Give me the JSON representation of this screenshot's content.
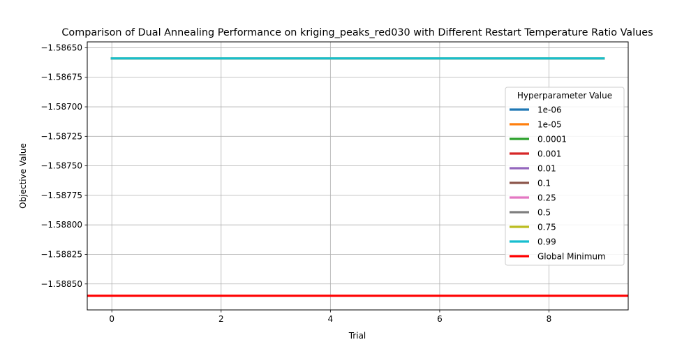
{
  "chart_data": {
    "type": "line",
    "title": "Comparison of Dual Annealing Performance on kriging_peaks_red030 with Different Restart Temperature Ratio Values",
    "xlabel": "Trial",
    "ylabel": "Objective Value",
    "xlim": [
      -0.45,
      9.45
    ],
    "ylim": [
      -1.58872,
      -1.58645
    ],
    "xticks": [
      0,
      2,
      4,
      6,
      8
    ],
    "xtick_labels": [
      "0",
      "2",
      "4",
      "6",
      "8"
    ],
    "yticks": [
      -1.5865,
      -1.58675,
      -1.587,
      -1.58725,
      -1.5875,
      -1.58775,
      -1.588,
      -1.58825,
      -1.5885
    ],
    "ytick_labels": [
      "−1.58650",
      "−1.58675",
      "−1.58700",
      "−1.58725",
      "−1.58750",
      "−1.58775",
      "−1.58800",
      "−1.58825",
      "−1.58850"
    ],
    "grid": true,
    "legend_title": "Hyperparameter Value",
    "legend_position": "center-right",
    "x": [
      0,
      1,
      2,
      3,
      4,
      5,
      6,
      7,
      8,
      9
    ],
    "series": [
      {
        "name": "1e-06",
        "color": "#1f77b4",
        "values": [
          -1.58659,
          -1.58659,
          -1.58659,
          -1.58659,
          -1.58659,
          -1.58659,
          -1.58659,
          -1.58659,
          -1.58659,
          -1.58659
        ]
      },
      {
        "name": "1e-05",
        "color": "#ff7f0e",
        "values": [
          -1.58659,
          -1.58659,
          -1.58659,
          -1.58659,
          -1.58659,
          -1.58659,
          -1.58659,
          -1.58659,
          -1.58659,
          -1.58659
        ]
      },
      {
        "name": "0.0001",
        "color": "#2ca02c",
        "values": [
          -1.58659,
          -1.58659,
          -1.58659,
          -1.58659,
          -1.58659,
          -1.58659,
          -1.58659,
          -1.58659,
          -1.58659,
          -1.58659
        ]
      },
      {
        "name": "0.001",
        "color": "#d62728",
        "values": [
          -1.58659,
          -1.58659,
          -1.58659,
          -1.58659,
          -1.58659,
          -1.58659,
          -1.58659,
          -1.58659,
          -1.58659,
          -1.58659
        ]
      },
      {
        "name": "0.01",
        "color": "#9467bd",
        "values": [
          -1.58659,
          -1.58659,
          -1.58659,
          -1.58659,
          -1.58659,
          -1.58659,
          -1.58659,
          -1.58659,
          -1.58659,
          -1.58659
        ]
      },
      {
        "name": "0.1",
        "color": "#8c564b",
        "values": [
          -1.58659,
          -1.58659,
          -1.58659,
          -1.58659,
          -1.58659,
          -1.58659,
          -1.58659,
          -1.58659,
          -1.58659,
          -1.58659
        ]
      },
      {
        "name": "0.25",
        "color": "#e377c2",
        "values": [
          -1.58659,
          -1.58659,
          -1.58659,
          -1.58659,
          -1.58659,
          -1.58659,
          -1.58659,
          -1.58659,
          -1.58659,
          -1.58659
        ]
      },
      {
        "name": "0.5",
        "color": "#7f7f7f",
        "values": [
          -1.58659,
          -1.58659,
          -1.58659,
          -1.58659,
          -1.58659,
          -1.58659,
          -1.58659,
          -1.58659,
          -1.58659,
          -1.58659
        ]
      },
      {
        "name": "0.75",
        "color": "#bcbd22",
        "values": [
          -1.58659,
          -1.58659,
          -1.58659,
          -1.58659,
          -1.58659,
          -1.58659,
          -1.58659,
          -1.58659,
          -1.58659,
          -1.58659
        ]
      },
      {
        "name": "0.99",
        "color": "#17becf",
        "values": [
          -1.58659,
          -1.58659,
          -1.58659,
          -1.58659,
          -1.58659,
          -1.58659,
          -1.58659,
          -1.58659,
          -1.58659,
          -1.58659
        ]
      }
    ],
    "reference_lines": [
      {
        "name": "Global Minimum",
        "color": "#ff0000",
        "y": -1.5886
      }
    ]
  }
}
